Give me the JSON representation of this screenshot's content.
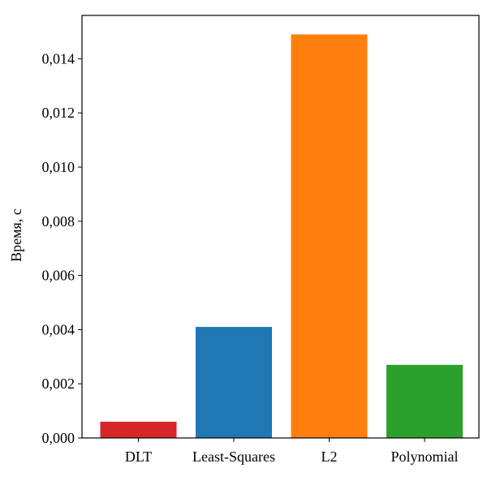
{
  "chart_data": {
    "type": "bar",
    "title": "",
    "xlabel": "",
    "ylabel": "Время, с",
    "categories": [
      "DLT",
      "Least-Squares",
      "L2",
      "Polynomial"
    ],
    "values": [
      0.0006,
      0.0041,
      0.0149,
      0.0027
    ],
    "colors": [
      "#d62728",
      "#1f77b4",
      "#ff7f0e",
      "#2ca02c"
    ],
    "ylim": [
      0,
      0.0156
    ],
    "yticks": [
      0,
      0.002,
      0.004,
      0.006,
      0.008,
      0.01,
      0.012,
      0.014
    ],
    "ytick_labels": [
      "0,000",
      "0,002",
      "0,004",
      "0,006",
      "0,008",
      "0,010",
      "0,012",
      "0,014"
    ],
    "grid": false,
    "legend": "none"
  }
}
